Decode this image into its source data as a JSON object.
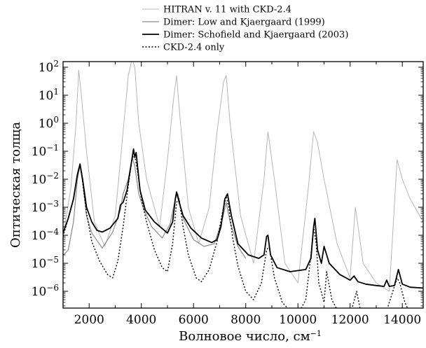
{
  "chart_data": {
    "type": "line",
    "title": "",
    "xlabel": "Волновое число, см",
    "xlabel_sup": "−1",
    "ylabel": "Оптическая толща",
    "xlim": [
      1000,
      14800
    ],
    "ylim_log10": [
      -6.6,
      2.2
    ],
    "y_scale": "log",
    "x_ticks": [
      2000,
      4000,
      6000,
      8000,
      10000,
      12000,
      14000
    ],
    "y_ticks": [
      {
        "exp": 2,
        "label_base": "10",
        "label_exp": "2"
      },
      {
        "exp": 1,
        "label_base": "10",
        "label_exp": "1"
      },
      {
        "exp": 0,
        "label_base": "10",
        "label_exp": "0"
      },
      {
        "exp": -1,
        "label_base": "10",
        "label_exp": "−1"
      },
      {
        "exp": -2,
        "label_base": "10",
        "label_exp": "−2"
      },
      {
        "exp": -3,
        "label_base": "10",
        "label_exp": "−3"
      },
      {
        "exp": -4,
        "label_base": "10",
        "label_exp": "−4"
      },
      {
        "exp": -5,
        "label_base": "10",
        "label_exp": "−5"
      },
      {
        "exp": -6,
        "label_base": "10",
        "label_exp": "−6"
      }
    ],
    "legend_position": "top",
    "series": [
      {
        "name": "HITRAN v. 11 with CKD-2.4",
        "style": "thin-light-gray",
        "color": "#b5b5b5",
        "x": [
          1000,
          1300,
          1500,
          1600,
          1700,
          1900,
          2200,
          2600,
          3000,
          3300,
          3500,
          3650,
          3750,
          3900,
          4200,
          4700,
          5000,
          5250,
          5350,
          5500,
          5800,
          6200,
          6600,
          6900,
          7150,
          7250,
          7400,
          7800,
          8300,
          8700,
          8850,
          9100,
          9500,
          10000,
          10400,
          10600,
          10750,
          11000,
          11500,
          12000,
          12200,
          12500,
          13000,
          13500,
          13800,
          14000,
          14300,
          14800
        ],
        "y": [
          9e-05,
          0.005,
          1,
          80,
          10,
          0.1,
          0.0003,
          4e-05,
          0.0005,
          0.5,
          50,
          200,
          100,
          1,
          0.01,
          0.0002,
          0.05,
          10,
          50,
          1,
          0.001,
          5e-05,
          0.001,
          0.5,
          30,
          50,
          1,
          0.0005,
          1e-05,
          0.01,
          0.5,
          0.01,
          1e-05,
          2e-06,
          0.005,
          0.5,
          0.2,
          0.01,
          5e-05,
          3e-06,
          0.001,
          1e-05,
          2e-06,
          1e-06,
          0.05,
          0.01,
          0.002,
          0.0003
        ]
      },
      {
        "name": "Dimer: Low and Kjaergaard (1999)",
        "style": "medium-gray",
        "color": "#8a8a8a",
        "x": [
          1000,
          1200,
          1400,
          1550,
          1650,
          1750,
          1900,
          2100,
          2500,
          2900,
          3200,
          3300,
          3500,
          3650,
          3750,
          3900,
          4100,
          4400,
          4800,
          5100,
          5300,
          5400,
          5600,
          6000,
          6400,
          6800,
          7100,
          7250,
          7400,
          7700,
          8000
        ],
        "y": [
          1.9e-05,
          3e-05,
          0.0003,
          0.01,
          0.03,
          0.008,
          0.0005,
          0.00012,
          3.5e-05,
          0.00013,
          0.0008,
          0.003,
          0.01,
          0.06,
          0.03,
          0.003,
          0.0008,
          0.0002,
          8e-05,
          0.00025,
          0.002,
          0.003,
          0.0004,
          7e-05,
          4e-05,
          5e-05,
          0.00035,
          0.0015,
          0.0003,
          4e-05,
          1.5e-05
        ]
      },
      {
        "name": "Dimer: Schofield and Kjaergaard (2003)",
        "style": "thick-black",
        "color": "#000000",
        "x": [
          1000,
          1200,
          1400,
          1550,
          1650,
          1750,
          1900,
          2100,
          2300,
          2500,
          2800,
          3100,
          3200,
          3300,
          3450,
          3600,
          3700,
          3750,
          3800,
          3850,
          3950,
          4150,
          4500,
          5000,
          5200,
          5300,
          5350,
          5450,
          5600,
          5900,
          6300,
          6700,
          6900,
          7050,
          7200,
          7300,
          7450,
          7700,
          8100,
          8500,
          8700,
          8800,
          8850,
          8950,
          9200,
          9700,
          10300,
          10500,
          10600,
          10650,
          10750,
          10900,
          11000,
          11200,
          11600,
          12000,
          12150,
          12300,
          12600,
          13000,
          13300,
          13400,
          13500,
          13700,
          13850,
          14000,
          14300,
          14800
        ],
        "y": [
          0.00012,
          0.0004,
          0.002,
          0.015,
          0.035,
          0.01,
          0.001,
          0.0003,
          0.00015,
          0.00013,
          0.00018,
          0.0004,
          0.0012,
          0.0015,
          0.004,
          0.03,
          0.12,
          0.06,
          0.09,
          0.03,
          0.004,
          0.0008,
          0.0003,
          0.00012,
          0.0003,
          0.002,
          0.0035,
          0.0015,
          0.0005,
          0.00018,
          8e-05,
          5.5e-05,
          7e-05,
          0.0002,
          0.002,
          0.003,
          0.0005,
          5e-05,
          2e-05,
          1.5e-05,
          2e-05,
          9e-05,
          0.0001,
          2e-05,
          7e-06,
          5e-06,
          6e-06,
          1.5e-05,
          0.0002,
          0.0004,
          3e-05,
          1e-05,
          4e-05,
          1e-05,
          4e-06,
          2.5e-06,
          3.5e-06,
          2.2e-06,
          1.8e-06,
          1.6e-06,
          1.5e-06,
          2.5e-06,
          1.5e-06,
          1.6e-06,
          6e-06,
          1.8e-06,
          1.4e-06,
          1.3e-06
        ]
      },
      {
        "name": "CKD-2.4 only",
        "style": "dotted-black",
        "color": "#000000",
        "x": [
          1000,
          1200,
          1400,
          1550,
          1650,
          1750,
          1900,
          2100,
          2400,
          2700,
          2900,
          3100,
          3300,
          3500,
          3650,
          3750,
          3850,
          4000,
          4200,
          4500,
          4800,
          5000,
          5200,
          5350,
          5450,
          5600,
          5800,
          6100,
          6300,
          6600,
          6900,
          7100,
          7250,
          7350,
          7500,
          7700,
          8000,
          8300,
          8600,
          8800,
          8900,
          9100,
          9400,
          9700,
          10000,
          10300,
          10500,
          10600,
          10700,
          10800,
          11000,
          11100,
          11300,
          11600,
          11900,
          12100,
          12250,
          12400,
          12700,
          13000,
          13300,
          13500,
          13800,
          13900,
          14100,
          14400,
          14800
        ],
        "y": [
          9e-05,
          0.0004,
          0.002,
          0.015,
          0.035,
          0.008,
          0.0006,
          6e-05,
          1.2e-05,
          4e-06,
          3e-06,
          1.2e-05,
          0.0002,
          0.006,
          0.06,
          0.07,
          0.02,
          0.002,
          0.0003,
          3e-05,
          7e-06,
          5e-06,
          5e-05,
          0.0015,
          0.002,
          0.0002,
          2e-05,
          3e-06,
          2.2e-06,
          6e-06,
          6e-05,
          0.0006,
          0.0025,
          0.001,
          8e-05,
          8e-06,
          1e-06,
          5e-07,
          2e-06,
          3e-05,
          4e-05,
          3e-06,
          4e-07,
          2e-07,
          1.5e-07,
          5e-07,
          2e-05,
          0.0002,
          5e-05,
          2e-06,
          4e-07,
          5e-06,
          5e-07,
          1.5e-07,
          1e-07,
          3e-07,
          1e-06,
          2e-07,
          5e-08,
          3e-08,
          1e-07,
          4e-07,
          3e-06,
          2e-06,
          4e-07,
          1e-07,
          5e-08
        ]
      }
    ]
  }
}
